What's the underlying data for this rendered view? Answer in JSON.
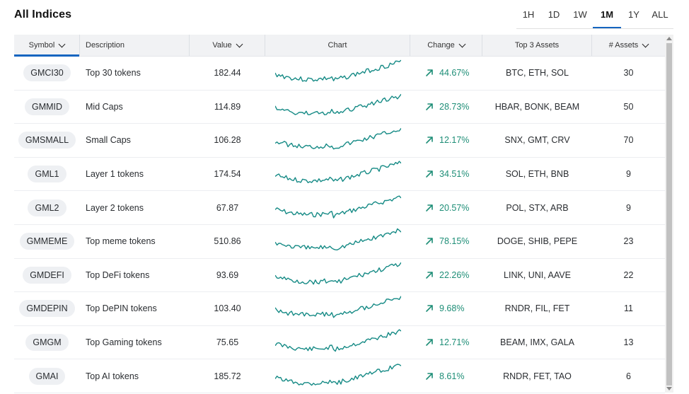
{
  "title": "All Indices",
  "ranges": [
    {
      "label": "1H",
      "active": false
    },
    {
      "label": "1D",
      "active": false
    },
    {
      "label": "1W",
      "active": false
    },
    {
      "label": "1M",
      "active": true
    },
    {
      "label": "1Y",
      "active": false
    },
    {
      "label": "ALL",
      "active": false
    }
  ],
  "columns": {
    "symbol": "Symbol",
    "description": "Description",
    "value": "Value",
    "chart": "Chart",
    "change": "Change",
    "top_assets": "Top 3 Assets",
    "assets": "# Assets"
  },
  "colors": {
    "accent": "#1565c0",
    "positive": "#1e8e77",
    "sparkline": "#158a85"
  },
  "icons": {
    "sort": "chevron-down-icon",
    "change": "arrow-up-right-icon"
  },
  "rows": [
    {
      "symbol": "GMCI30",
      "description": "Top 30 tokens",
      "value": "182.44",
      "change": "44.67%",
      "top_assets": "BTC, ETH, SOL",
      "assets": "30"
    },
    {
      "symbol": "GMMID",
      "description": "Mid Caps",
      "value": "114.89",
      "change": "28.73%",
      "top_assets": "HBAR, BONK, BEAM",
      "assets": "50"
    },
    {
      "symbol": "GMSMALL",
      "description": "Small Caps",
      "value": "106.28",
      "change": "12.17%",
      "top_assets": "SNX, GMT, CRV",
      "assets": "70"
    },
    {
      "symbol": "GML1",
      "description": "Layer 1 tokens",
      "value": "174.54",
      "change": "34.51%",
      "top_assets": "SOL, ETH, BNB",
      "assets": "9"
    },
    {
      "symbol": "GML2",
      "description": "Layer 2 tokens",
      "value": "67.87",
      "change": "20.57%",
      "top_assets": "POL, STX, ARB",
      "assets": "9"
    },
    {
      "symbol": "GMMEME",
      "description": "Top meme tokens",
      "value": "510.86",
      "change": "78.15%",
      "top_assets": "DOGE, SHIB, PEPE",
      "assets": "23"
    },
    {
      "symbol": "GMDEFI",
      "description": "Top DeFi tokens",
      "value": "93.69",
      "change": "22.26%",
      "top_assets": "LINK, UNI, AAVE",
      "assets": "22"
    },
    {
      "symbol": "GMDEPIN",
      "description": "Top DePIN tokens",
      "value": "103.40",
      "change": "9.68%",
      "top_assets": "RNDR, FIL, FET",
      "assets": "11"
    },
    {
      "symbol": "GMGM",
      "description": "Top Gaming tokens",
      "value": "75.65",
      "change": "12.71%",
      "top_assets": "BEAM, IMX, GALA",
      "assets": "13"
    },
    {
      "symbol": "GMAI",
      "description": "Top AI tokens",
      "value": "185.72",
      "change": "8.61%",
      "top_assets": "RNDR, FET, TAO",
      "assets": "6"
    }
  ]
}
